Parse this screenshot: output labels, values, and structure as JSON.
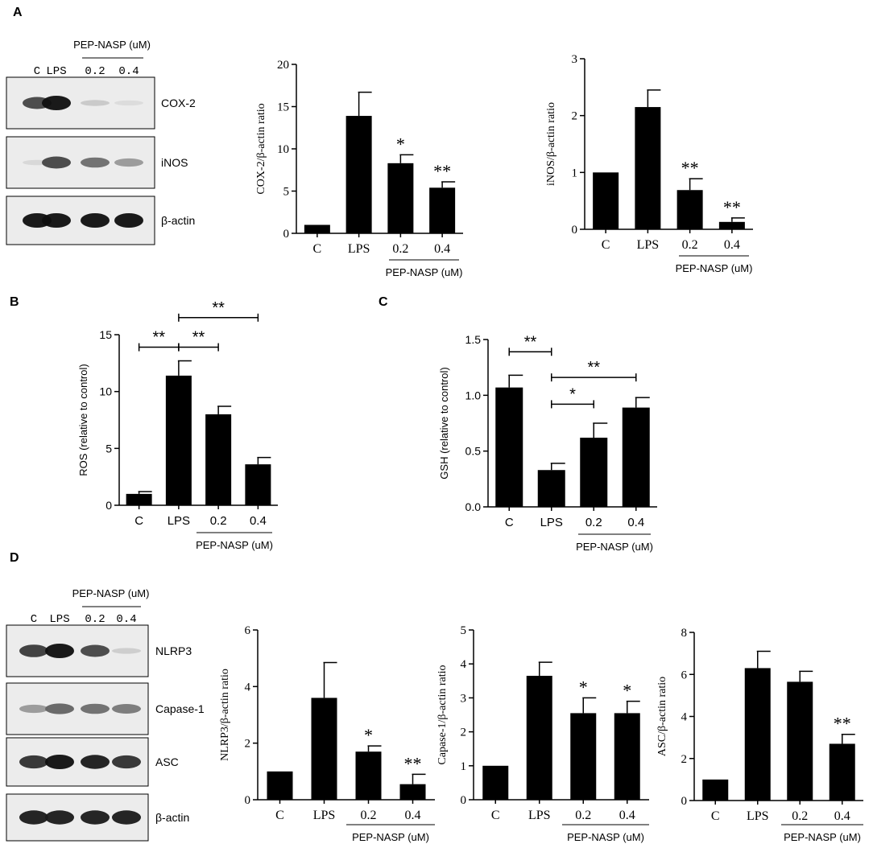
{
  "panels": {
    "A": {
      "letter": "A",
      "blot": {
        "header": "PEP-NASP (uM)",
        "lanes": [
          "C",
          "LPS",
          "0.2",
          "0.4"
        ],
        "rows": [
          {
            "label": "COX-2",
            "intensities": [
              0.75,
              1.0,
              0.12,
              0.03
            ]
          },
          {
            "label": "iNOS",
            "intensities": [
              0.05,
              0.75,
              0.55,
              0.35
            ]
          },
          {
            "label": "β-actin",
            "intensities": [
              1.0,
              1.0,
              1.0,
              1.0
            ]
          }
        ]
      }
    },
    "B": {
      "letter": "B"
    },
    "C": {
      "letter": "C"
    },
    "D": {
      "letter": "D",
      "blot": {
        "header": "PEP-NASP (uM)",
        "lanes": [
          "C",
          "LPS",
          "0.2",
          "0.4"
        ],
        "rows": [
          {
            "label": "NLRP3",
            "intensities": [
              0.8,
              1.0,
              0.75,
              0.1
            ]
          },
          {
            "label": "Capase-1",
            "intensities": [
              0.35,
              0.6,
              0.55,
              0.5
            ]
          },
          {
            "label": "ASC",
            "intensities": [
              0.85,
              1.0,
              0.95,
              0.85
            ]
          },
          {
            "label": "β-actin",
            "intensities": [
              0.95,
              0.95,
              0.95,
              0.95
            ]
          }
        ]
      }
    }
  },
  "chart_data": [
    {
      "id": "A1",
      "type": "bar",
      "categories": [
        "C",
        "LPS",
        "0.2",
        "0.4"
      ],
      "values": [
        1.0,
        13.9,
        8.3,
        5.4
      ],
      "errors": [
        0,
        2.8,
        1.0,
        0.7
      ],
      "ylabel": "COX-2/β-actin ratio",
      "ylim": [
        0,
        20
      ],
      "yticks": [
        "0",
        "5",
        "10",
        "15",
        "20"
      ],
      "significance": [
        "",
        "",
        "*",
        "**"
      ],
      "group_label": "PEP-NASP (uM)"
    },
    {
      "id": "A2",
      "type": "bar",
      "categories": [
        "C",
        "LPS",
        "0.2",
        "0.4"
      ],
      "values": [
        1.0,
        2.15,
        0.69,
        0.13
      ],
      "errors": [
        0,
        0.3,
        0.2,
        0.07
      ],
      "ylabel": "iNOS/β-actin ratio",
      "ylim": [
        0,
        3
      ],
      "yticks": [
        "0",
        "1",
        "2",
        "3"
      ],
      "significance": [
        "",
        "",
        "**",
        "**"
      ],
      "group_label": "PEP-NASP (uM)"
    },
    {
      "id": "B",
      "type": "bar",
      "categories": [
        "C",
        "LPS",
        "0.2",
        "0.4"
      ],
      "values": [
        1.0,
        11.4,
        8.0,
        3.6
      ],
      "errors": [
        0.2,
        1.3,
        0.7,
        0.6
      ],
      "ylabel": "ROS (relative to control)",
      "ylim": [
        0,
        15
      ],
      "yticks": [
        "0",
        "5",
        "10",
        "15"
      ],
      "brackets": [
        {
          "from": 0,
          "to": 1,
          "label": "**",
          "y": 13.9
        },
        {
          "from": 1,
          "to": 2,
          "label": "**",
          "y": 13.9
        },
        {
          "from": 1,
          "to": 3,
          "label": "**",
          "y": 16.5
        }
      ],
      "group_label": "PEP-NASP (uM)"
    },
    {
      "id": "C",
      "type": "bar",
      "categories": [
        "C",
        "LPS",
        "0.2",
        "0.4"
      ],
      "values": [
        1.07,
        0.33,
        0.62,
        0.89
      ],
      "errors": [
        0.11,
        0.06,
        0.13,
        0.09
      ],
      "ylabel": "GSH (relative to control)",
      "ylim": [
        0,
        1.5
      ],
      "yticks": [
        "0.0",
        "0.5",
        "1.0",
        "1.5"
      ],
      "brackets": [
        {
          "from": 0,
          "to": 1,
          "label": "**",
          "y": 1.39
        },
        {
          "from": 1,
          "to": 3,
          "label": "**",
          "y": 1.16
        },
        {
          "from": 1,
          "to": 2,
          "label": "*",
          "y": 0.92
        }
      ],
      "group_label": "PEP-NASP (uM)"
    },
    {
      "id": "D1",
      "type": "bar",
      "categories": [
        "C",
        "LPS",
        "0.2",
        "0.4"
      ],
      "values": [
        1.0,
        3.6,
        1.7,
        0.55
      ],
      "errors": [
        0,
        1.25,
        0.2,
        0.35
      ],
      "ylabel": "NLRP3/β-actin ratio",
      "ylim": [
        0,
        6
      ],
      "yticks": [
        "0",
        "2",
        "4",
        "6"
      ],
      "significance": [
        "",
        "",
        "*",
        "**"
      ],
      "group_label": "PEP-NASP (uM)"
    },
    {
      "id": "D2",
      "type": "bar",
      "categories": [
        "C",
        "LPS",
        "0.2",
        "0.4"
      ],
      "values": [
        1.0,
        3.65,
        2.55,
        2.55
      ],
      "errors": [
        0,
        0.4,
        0.45,
        0.35
      ],
      "ylabel": "Capase-1/β-actin ratio",
      "ylim": [
        0,
        5
      ],
      "yticks": [
        "0",
        "1",
        "2",
        "3",
        "4",
        "5"
      ],
      "significance": [
        "",
        "",
        "*",
        "*"
      ],
      "group_label": "PEP-NASP (uM)"
    },
    {
      "id": "D3",
      "type": "bar",
      "categories": [
        "C",
        "LPS",
        "0.2",
        "0.4"
      ],
      "values": [
        1.0,
        6.3,
        5.65,
        2.7
      ],
      "errors": [
        0,
        0.8,
        0.5,
        0.45
      ],
      "ylabel": "ASC/β-actin ratio",
      "ylim": [
        0,
        8
      ],
      "yticks": [
        "0",
        "2",
        "4",
        "6",
        "8"
      ],
      "significance": [
        "",
        "",
        "",
        "**"
      ],
      "group_label": "PEP-NASP (uM)"
    }
  ]
}
